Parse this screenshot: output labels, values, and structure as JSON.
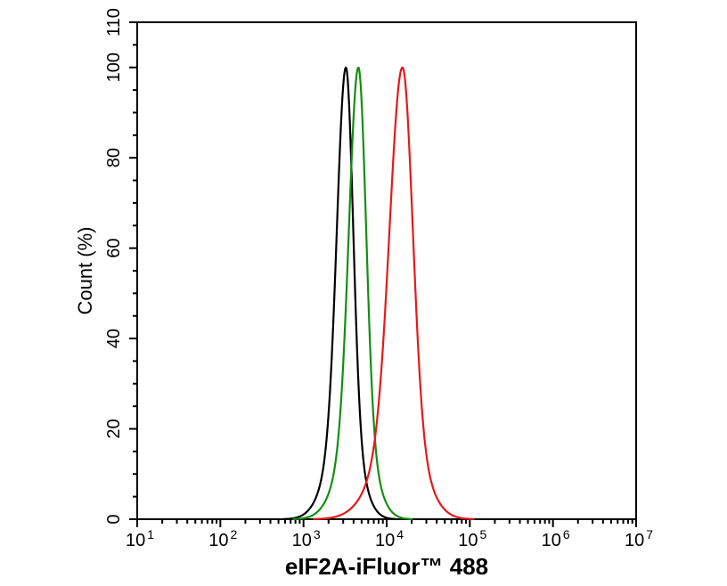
{
  "chart_data": {
    "type": "line",
    "subtype": "flow-cytometry-overlay-histogram",
    "title": "",
    "xlabel": "eIF2A-iFluor™ 488",
    "ylabel": "Count (%)",
    "x_scale": "log10",
    "xlim_log10": [
      1,
      7
    ],
    "xlim": [
      10,
      10000000
    ],
    "ylim": [
      0,
      110
    ],
    "x_tick_base": "10",
    "x_major_tick_exponents": [
      1,
      2,
      3,
      4,
      5,
      6,
      7
    ],
    "x_minor_tick_mantissas": [
      2,
      3,
      4,
      5,
      6,
      7,
      8,
      9
    ],
    "y_major_ticks": [
      0,
      20,
      40,
      60,
      80,
      100,
      110
    ],
    "y_minor_tick_step": 5,
    "grid": false,
    "legend": "none",
    "axis_color": "#000000",
    "curve_model": "two-component gaussian of log10(x); y = peak_y * ((1-tail_fraction)*exp(-0.5*z^2) + tail_fraction*exp(-0.5*(z/tail_width_multiplier)^2)), z = (log10(x)-peak_log10_x)/sigma(side)",
    "series": [
      {
        "name": "black",
        "color": "#000000",
        "peak_log10_x": 3.51,
        "peak_x_approx": 3240,
        "peak_y": 100,
        "sigma_left_decades": 0.105,
        "sigma_right_decades": 0.085,
        "tail_fraction": 0.2,
        "tail_width_multiplier": 2.0
      },
      {
        "name": "green",
        "color": "#128f12",
        "peak_log10_x": 3.66,
        "peak_x_approx": 4570,
        "peak_y": 100,
        "sigma_left_decades": 0.11,
        "sigma_right_decades": 0.09,
        "tail_fraction": 0.2,
        "tail_width_multiplier": 2.0
      },
      {
        "name": "red",
        "color": "#e61919",
        "peak_log10_x": 4.19,
        "peak_x_approx": 15500,
        "peak_y": 100,
        "sigma_left_decades": 0.15,
        "sigma_right_decades": 0.12,
        "tail_fraction": 0.2,
        "tail_width_multiplier": 2.0
      }
    ]
  }
}
